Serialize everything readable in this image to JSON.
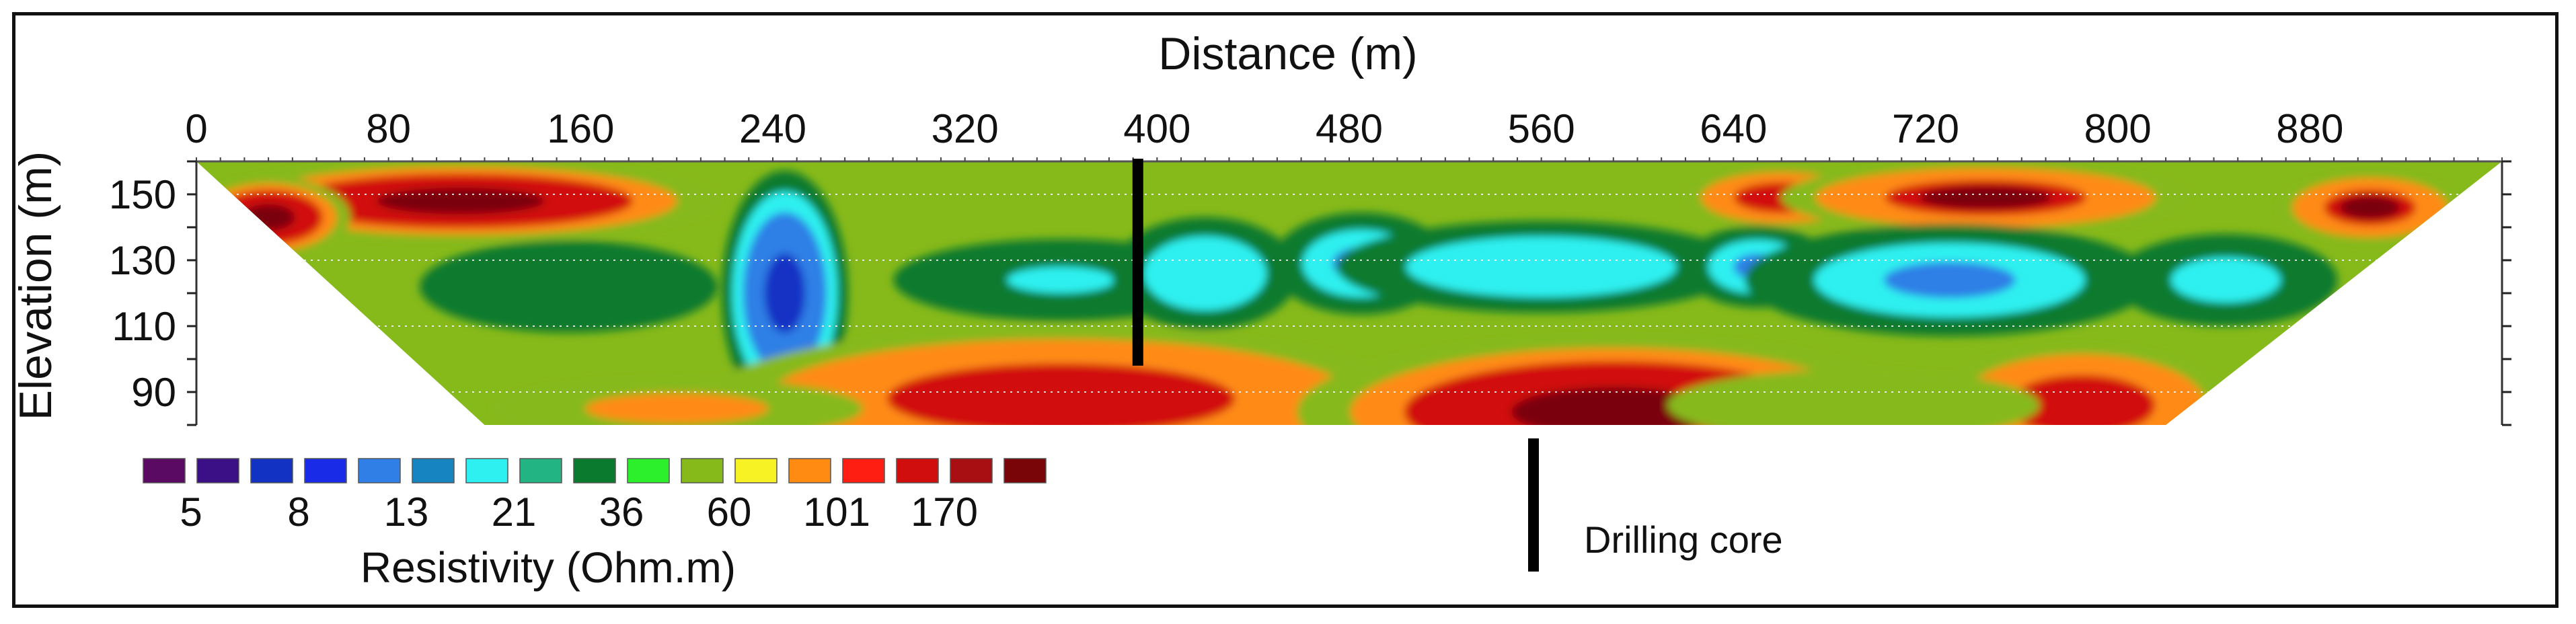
{
  "chart_data": {
    "type": "heatmap",
    "title": "",
    "xlabel": "Distance (m)",
    "ylabel": "Elevation (m)",
    "xlim": [
      0,
      960
    ],
    "ylim": [
      80,
      160
    ],
    "x_ticks": [
      0,
      80,
      160,
      240,
      320,
      400,
      480,
      560,
      640,
      720,
      800,
      880
    ],
    "x_tick_labels": [
      "0",
      "80",
      "160",
      "240",
      "320",
      "400",
      "480",
      "560",
      "640",
      "720",
      "800",
      "880"
    ],
    "y_ticks": [
      90,
      110,
      130,
      150
    ],
    "y_tick_labels": [
      "90",
      "110",
      "130",
      "150"
    ],
    "section_outline": [
      [
        0,
        160
      ],
      [
        960,
        160
      ],
      [
        820,
        80
      ],
      [
        120,
        80
      ]
    ],
    "colorbar": {
      "title": "Resistivity (Ohm.m)",
      "colors": [
        "#5a0a63",
        "#3b0f86",
        "#1232c4",
        "#1a2be8",
        "#2f7fe6",
        "#1784c2",
        "#2ff0f0",
        "#22b583",
        "#0a7a2e",
        "#2cf02c",
        "#86b91a",
        "#f7f224",
        "#ff8b12",
        "#ff1e12",
        "#d10e0e",
        "#a80f12",
        "#7a0508"
      ],
      "labels": [
        "5",
        "8",
        "13",
        "21",
        "36",
        "60",
        "101",
        "170"
      ],
      "scale": [
        5,
        8,
        13,
        21,
        36,
        60,
        101,
        170,
        300
      ]
    },
    "anomalies": [
      {
        "x": 110,
        "y": 148,
        "rx": 70,
        "ry": 8,
        "value": 190
      },
      {
        "x": 30,
        "y": 143,
        "rx": 22,
        "ry": 8,
        "value": 200
      },
      {
        "x": 660,
        "y": 149,
        "rx": 26,
        "ry": 6,
        "value": 160
      },
      {
        "x": 745,
        "y": 149,
        "rx": 55,
        "ry": 7,
        "value": 175
      },
      {
        "x": 905,
        "y": 146,
        "rx": 25,
        "ry": 7,
        "value": 170
      },
      {
        "x": 245,
        "y": 120,
        "rx": 17,
        "ry": 24,
        "value": 6
      },
      {
        "x": 155,
        "y": 122,
        "rx": 40,
        "ry": 9,
        "value": 23
      },
      {
        "x": 360,
        "y": 124,
        "rx": 45,
        "ry": 8,
        "value": 20
      },
      {
        "x": 420,
        "y": 126,
        "rx": 25,
        "ry": 11,
        "value": 14
      },
      {
        "x": 485,
        "y": 129,
        "rx": 24,
        "ry": 10,
        "value": 12
      },
      {
        "x": 560,
        "y": 128,
        "rx": 55,
        "ry": 9,
        "value": 14
      },
      {
        "x": 650,
        "y": 128,
        "rx": 20,
        "ry": 8,
        "value": 13
      },
      {
        "x": 730,
        "y": 124,
        "rx": 55,
        "ry": 11,
        "value": 11
      },
      {
        "x": 845,
        "y": 124,
        "rx": 30,
        "ry": 9,
        "value": 16
      },
      {
        "x": 360,
        "y": 88,
        "rx": 95,
        "ry": 14,
        "value": 140
      },
      {
        "x": 590,
        "y": 84,
        "rx": 85,
        "ry": 15,
        "value": 190
      },
      {
        "x": 785,
        "y": 86,
        "rx": 40,
        "ry": 12,
        "value": 150
      },
      {
        "x": 200,
        "y": 85,
        "rx": 50,
        "ry": 6,
        "value": 70
      },
      {
        "x": 690,
        "y": 86,
        "rx": 50,
        "ry": 7,
        "value": 50
      }
    ],
    "markers": [
      {
        "label": "",
        "x": 392,
        "y_top": 160,
        "y_bottom": 98
      }
    ],
    "legend_marker_label": "Drilling core"
  }
}
